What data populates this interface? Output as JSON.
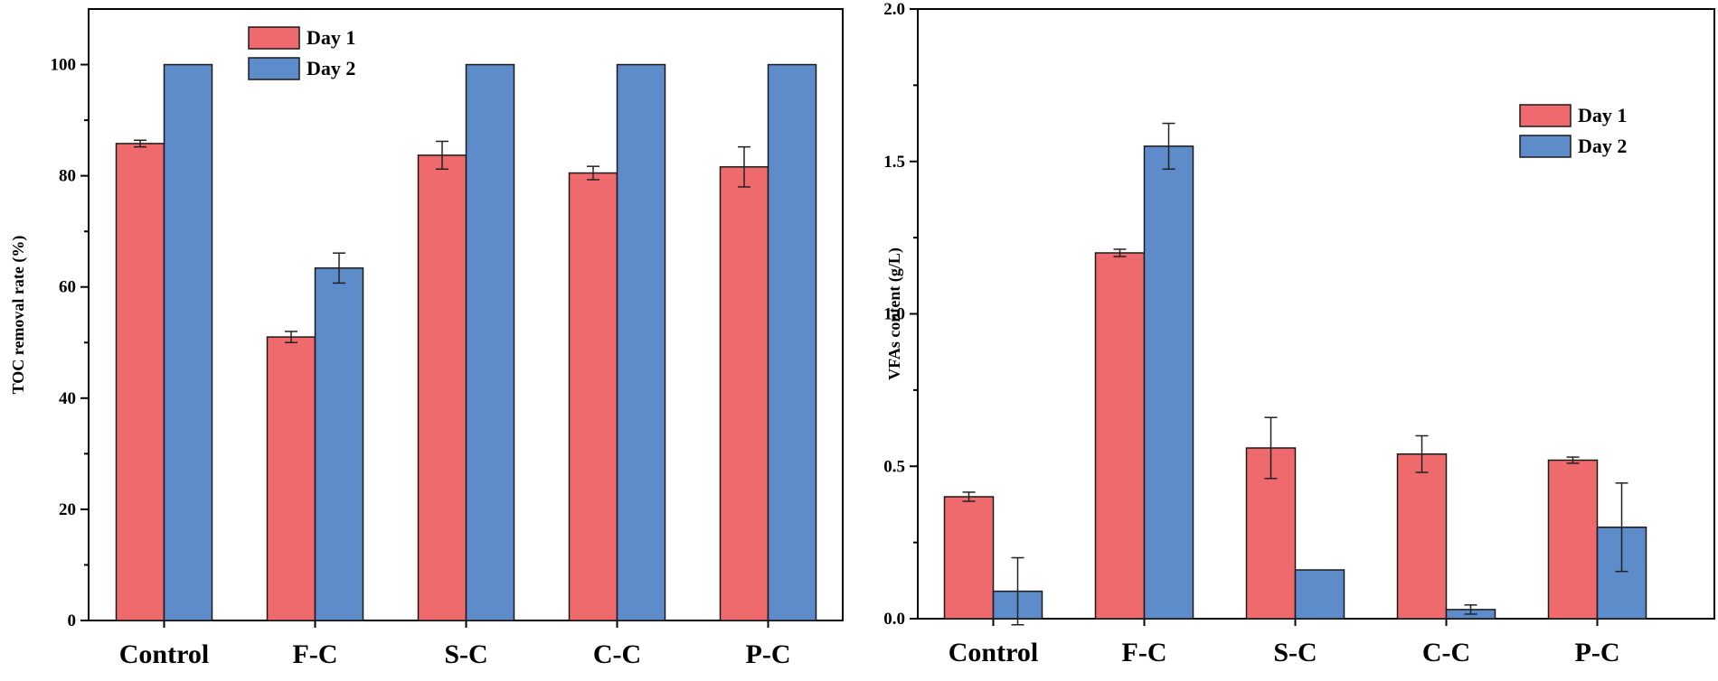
{
  "chart_data": [
    {
      "type": "bar",
      "title": "",
      "xlabel": "",
      "ylabel": "TOC removal rate (%)",
      "ylim": [
        0,
        110
      ],
      "yticks": [
        0,
        20,
        40,
        60,
        80,
        100
      ],
      "ytick_labels": [
        "0",
        "20",
        "40",
        "60",
        "80",
        "100"
      ],
      "categories": [
        "Control",
        "F-C",
        "S-C",
        "C-C",
        "P-C"
      ],
      "legend_position": "top-center",
      "series": [
        {
          "name": "Day 1",
          "color": "#EE6A6C",
          "values": [
            85.8,
            51.0,
            83.7,
            80.5,
            81.6
          ],
          "errors": [
            0.6,
            1.0,
            2.5,
            1.2,
            3.6
          ]
        },
        {
          "name": "Day 2",
          "color": "#5E8BC9",
          "values": [
            100,
            63.4,
            100,
            100,
            100
          ],
          "errors": [
            0,
            2.7,
            0,
            0,
            0
          ]
        }
      ]
    },
    {
      "type": "bar",
      "title": "",
      "xlabel": "",
      "ylabel": "VFAs content (g/L)",
      "ylim": [
        0,
        2.0
      ],
      "yticks": [
        0,
        0.5,
        1.0,
        1.5,
        2.0
      ],
      "ytick_labels": [
        "0.0",
        "0.5",
        "1.0",
        "1.5",
        "2.0"
      ],
      "categories": [
        "Control",
        "F-C",
        "S-C",
        "C-C",
        "P-C"
      ],
      "legend_position": "top-right",
      "series": [
        {
          "name": "Day 1",
          "color": "#EE6A6C",
          "values": [
            0.4,
            1.2,
            0.56,
            0.54,
            0.52
          ],
          "errors": [
            0.015,
            0.012,
            0.1,
            0.06,
            0.01
          ]
        },
        {
          "name": "Day 2",
          "color": "#5E8BC9",
          "values": [
            0.09,
            1.55,
            0.16,
            0.03,
            0.3
          ],
          "errors": [
            0.11,
            0.075,
            0,
            0.015,
            0.145
          ]
        }
      ]
    }
  ]
}
